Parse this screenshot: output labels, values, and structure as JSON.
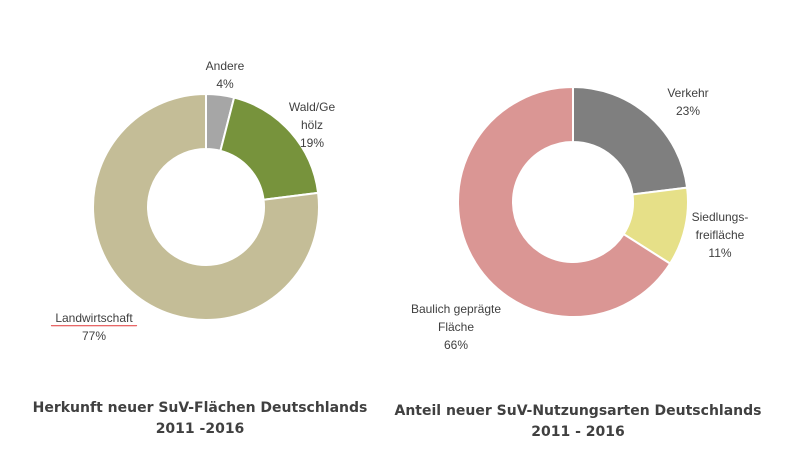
{
  "chart_data": [
    {
      "type": "pie",
      "subtype": "donut",
      "title": [
        "Herkunft neuer SuV-Flächen Deutschlands",
        "2011 -2016"
      ],
      "slices": [
        {
          "label": [
            "Andere"
          ],
          "value": 4,
          "value_label": "4%",
          "color": "#a6a6a6"
        },
        {
          "label": [
            "Wald/Ge",
            "hölz"
          ],
          "value": 19,
          "value_label": "19%",
          "color": "#77933c"
        },
        {
          "label": [
            "Landwirtschaft"
          ],
          "value": 77,
          "value_label": "77%",
          "color": "#c4bd97"
        }
      ]
    },
    {
      "type": "pie",
      "subtype": "donut",
      "title": [
        "Anteil neuer SuV-Nutzungsarten Deutschlands",
        "2011 - 2016"
      ],
      "slices": [
        {
          "label": [
            "Verkehr"
          ],
          "value": 23,
          "value_label": "23%",
          "color": "#7f7f7f"
        },
        {
          "label": [
            "Siedlungs-",
            "freifläche"
          ],
          "value": 11,
          "value_label": "11%",
          "color": "#e6e088"
        },
        {
          "label": [
            "Baulich geprägte",
            "Fläche"
          ],
          "value": 66,
          "value_label": "66%",
          "color": "#da9694"
        }
      ]
    }
  ]
}
